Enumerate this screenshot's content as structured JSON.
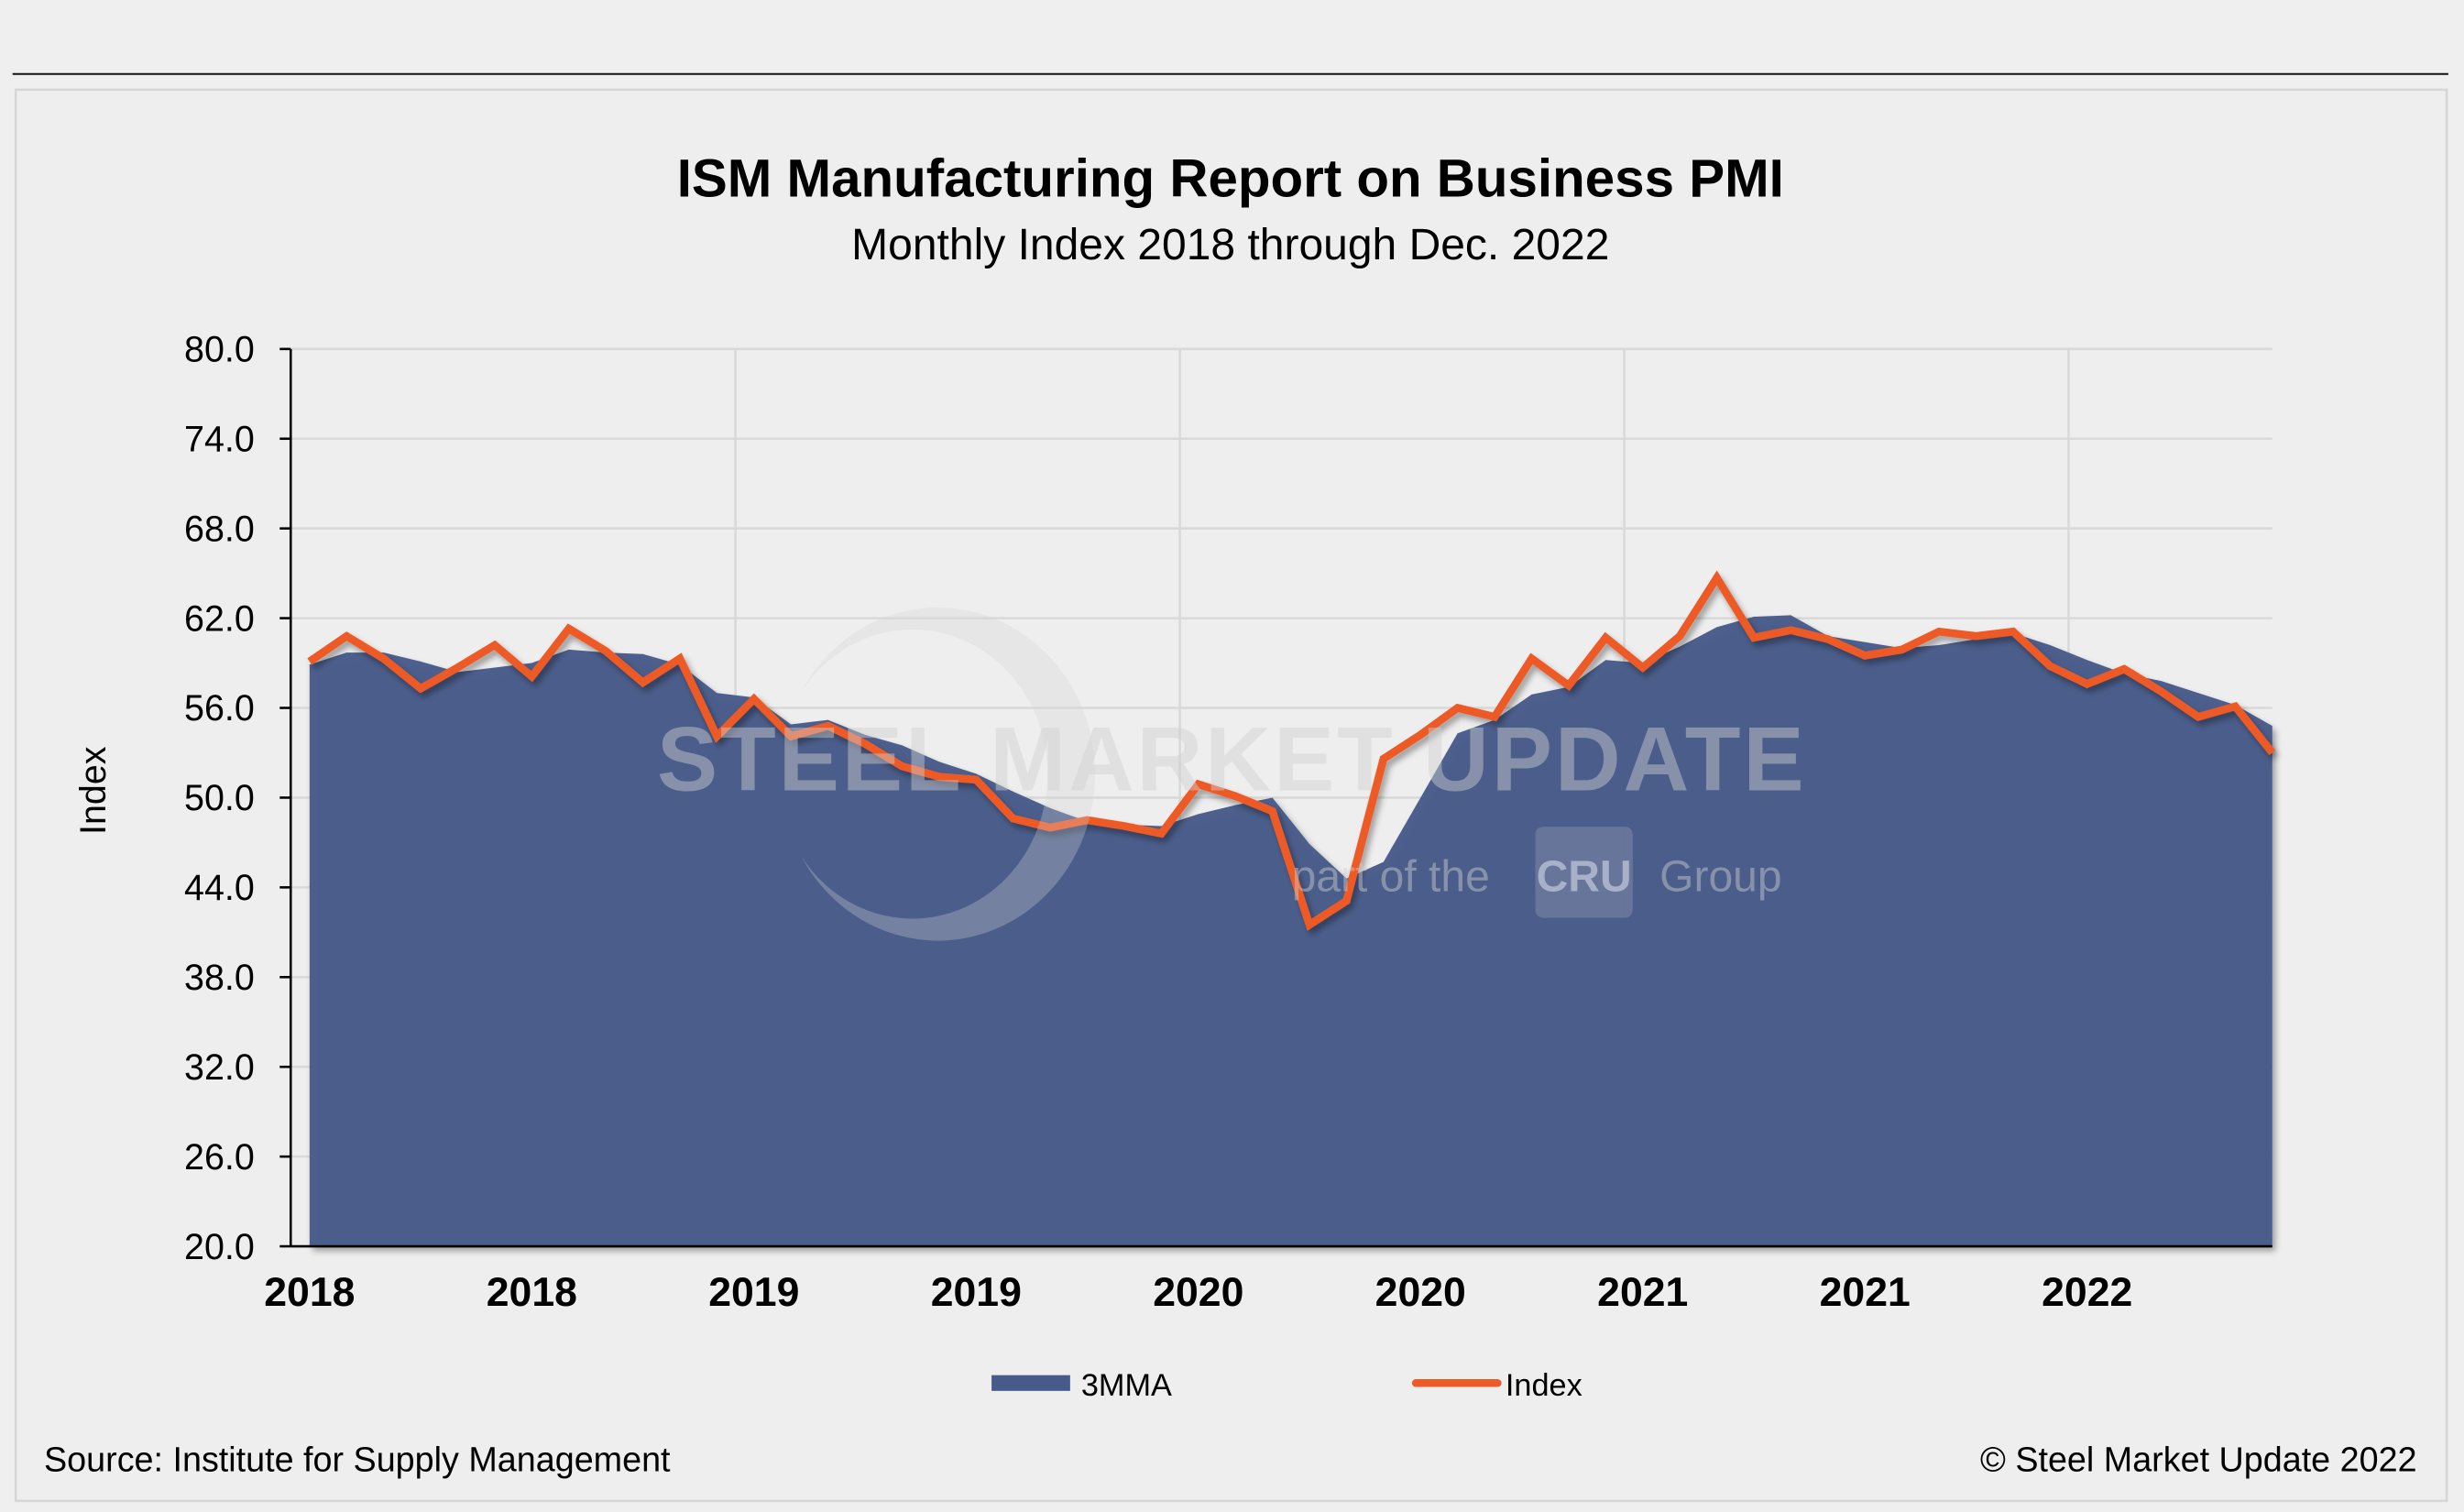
{
  "chart_data": {
    "type": "area+line",
    "title": "ISM Manufacturing Report on Business PMI",
    "subtitle": "Monthly Index 2018 through Dec. 2022",
    "ylabel": "Index",
    "xlabel": "",
    "ylim": [
      20,
      80
    ],
    "y_ticks": [
      "80.0",
      "74.0",
      "68.0",
      "62.0",
      "56.0",
      "50.0",
      "44.0",
      "38.0",
      "32.0",
      "26.0",
      "20.0"
    ],
    "x_tick_labels": [
      "2018",
      "2018",
      "2019",
      "2019",
      "2020",
      "2020",
      "2021",
      "2021",
      "2022"
    ],
    "x_start": "2018-01",
    "x_end": "2022-06",
    "grid": true,
    "legend_position": "bottom",
    "series": [
      {
        "name": "3MMA",
        "kind": "area",
        "color": "#475b8a",
        "values": [
          58.9,
          59.7,
          59.7,
          59.1,
          58.4,
          58.7,
          59.0,
          59.9,
          59.7,
          59.6,
          58.9,
          57.0,
          56.7,
          54.9,
          55.2,
          54.2,
          53.5,
          52.4,
          51.6,
          50.4,
          49.3,
          48.4,
          48.2,
          48.1,
          48.9,
          49.5,
          50.0,
          46.9,
          44.6,
          45.7,
          50.0,
          54.3,
          55.2,
          56.9,
          57.4,
          59.2,
          59.0,
          60.1,
          61.4,
          62.1,
          62.2,
          60.8,
          60.4,
          60.0,
          60.2,
          60.6,
          61.0,
          60.2,
          59.2,
          58.3,
          57.8,
          57.0,
          56.2,
          54.8
        ]
      },
      {
        "name": "Index",
        "kind": "line",
        "color": "#ee5a28",
        "values": [
          59.1,
          60.8,
          59.3,
          57.3,
          58.7,
          60.2,
          58.1,
          61.3,
          59.8,
          57.7,
          59.3,
          54.1,
          56.6,
          54.1,
          54.8,
          53.6,
          52.1,
          51.4,
          51.2,
          48.6,
          48.0,
          48.5,
          48.1,
          47.6,
          50.9,
          50.1,
          49.1,
          41.5,
          43.1,
          52.6,
          54.2,
          56.0,
          55.4,
          59.3,
          57.5,
          60.7,
          58.7,
          60.8,
          64.7,
          60.7,
          61.2,
          60.6,
          59.5,
          59.9,
          61.1,
          60.8,
          61.1,
          58.8,
          57.6,
          58.6,
          57.1,
          55.4,
          56.1,
          53.0
        ]
      }
    ]
  },
  "footer": {
    "source": "Source: Institute for Supply Management",
    "copyright": "© Steel Market Update 2022"
  },
  "watermark": {
    "line1": "STEEL MARKET UPDATE",
    "line2_pre": "part of the",
    "line2_logo": "CRU",
    "line2_post": "Group"
  }
}
